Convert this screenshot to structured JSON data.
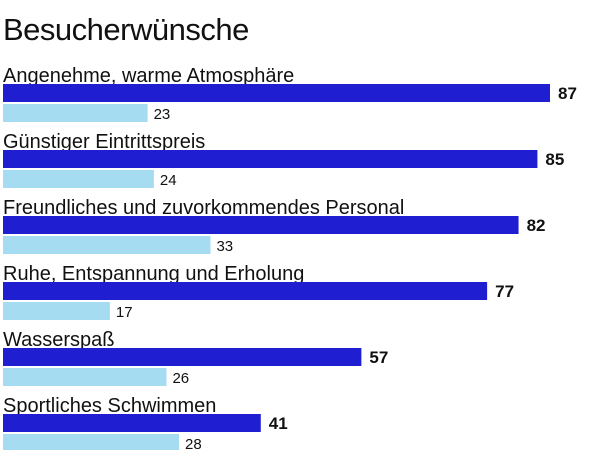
{
  "chart_data": {
    "type": "bar",
    "orientation": "horizontal",
    "title": "Besucherwünsche",
    "categories": [
      "Angenehme, warme Atmosphäre",
      "Günstiger Eintrittspreis",
      "Freundliches und zuvorkommendes Personal",
      "Ruhe, Entspannung und Erholung",
      "Wasserspaß",
      "Sportliches Schwimmen"
    ],
    "series": [
      {
        "values": [
          87,
          85,
          82,
          77,
          57,
          41
        ],
        "color": "#1f1fd1"
      },
      {
        "values": [
          23,
          24,
          33,
          17,
          26,
          28
        ],
        "color": "#a6dcf2"
      }
    ],
    "xlim": [
      0,
      87
    ],
    "grid": false,
    "legend": "none"
  }
}
